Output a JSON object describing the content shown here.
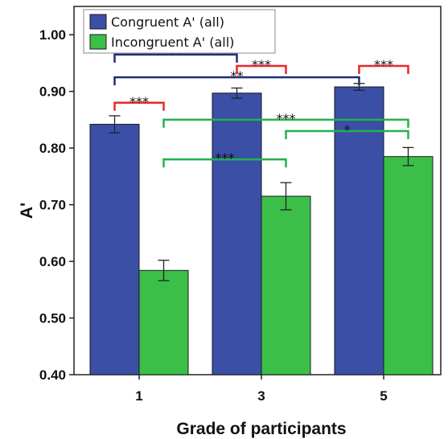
{
  "chart_data": {
    "type": "bar",
    "xlabel": "Grade of participants",
    "ylabel": "A'",
    "ylim": [
      0.4,
      1.05
    ],
    "yticks": [
      "0.40",
      "0.50",
      "0.60",
      "0.70",
      "0.80",
      "0.90",
      "1.00"
    ],
    "categories": [
      "1",
      "3",
      "5"
    ],
    "grid": false,
    "legend_position": "top-left",
    "series": [
      {
        "name": "Congruent A' (all)",
        "color": "#3b4fa6",
        "values": [
          0.842,
          0.897,
          0.908
        ],
        "errors": [
          0.015,
          0.009,
          0.006
        ]
      },
      {
        "name": "Incongruent A' (all)",
        "color": "#3bbf48",
        "values": [
          0.584,
          0.715,
          0.785
        ],
        "errors": [
          0.018,
          0.024,
          0.016
        ]
      }
    ],
    "significance": [
      {
        "label": "**",
        "color": "#1f2f78",
        "from": [
          0,
          0
        ],
        "to": [
          1,
          0
        ],
        "level": 0.965
      },
      {
        "label": "**",
        "color": "#1f2f78",
        "from": [
          0,
          0
        ],
        "to": [
          2,
          0
        ],
        "level": 0.925
      },
      {
        "label": "***",
        "color": "#e8262b",
        "from": [
          0,
          0
        ],
        "to": [
          0,
          1
        ],
        "level": 0.88
      },
      {
        "label": "***",
        "color": "#e8262b",
        "from": [
          1,
          0
        ],
        "to": [
          1,
          1
        ],
        "level": 0.945
      },
      {
        "label": "***",
        "color": "#e8262b",
        "from": [
          2,
          0
        ],
        "to": [
          2,
          1
        ],
        "level": 0.945
      },
      {
        "label": "***",
        "color": "#22b24c",
        "from": [
          0,
          1
        ],
        "to": [
          2,
          1
        ],
        "level": 0.85
      },
      {
        "label": "*",
        "color": "#22b24c",
        "from": [
          1,
          1
        ],
        "to": [
          2,
          1
        ],
        "level": 0.83
      },
      {
        "label": "***",
        "color": "#22b24c",
        "from": [
          0,
          1
        ],
        "to": [
          1,
          1
        ],
        "level": 0.78
      }
    ]
  }
}
